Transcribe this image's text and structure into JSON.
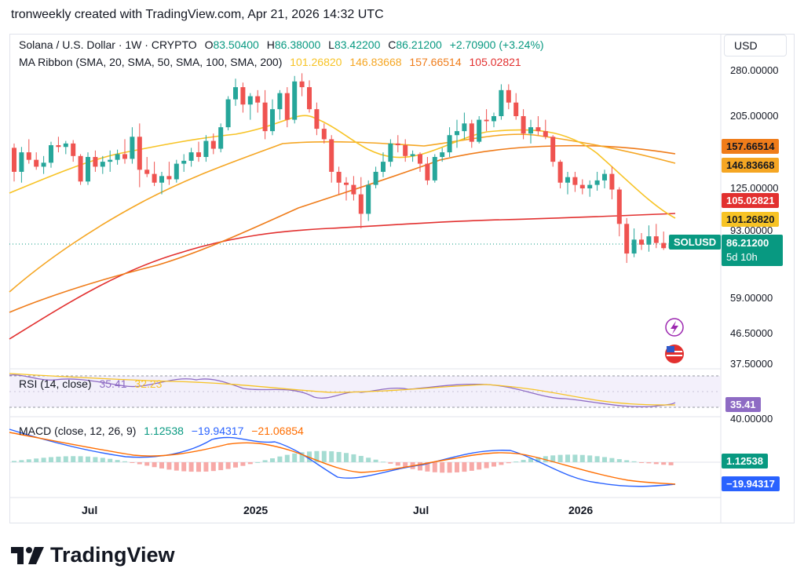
{
  "header": {
    "text": "tronweekly created with TradingView.com, Apr 21, 2026 14:32 UTC"
  },
  "currency_button": "USD",
  "legend": {
    "symbol": "Solana / U.S. Dollar · 1W · CRYPTO",
    "open_label": "O",
    "open": "83.50400",
    "high_label": "H",
    "high": "86.38000",
    "low_label": "L",
    "low": "83.42200",
    "close_label": "C",
    "close": "86.21200",
    "change": "+2.70900 (+3.24%)",
    "ma_title": "MA Ribbon (SMA, 20, SMA, 50, SMA, 100, SMA, 200)",
    "ma_values": [
      "101.26820",
      "146.83668",
      "157.66514",
      "105.02821"
    ]
  },
  "rsi_legend": {
    "title": "RSI (14, close)",
    "rsi": "35.41",
    "ma": "32.23"
  },
  "macd_legend": {
    "title": "MACD (close, 12, 26, 9)",
    "hist": "1.12538",
    "macd": "−19.94317",
    "signal": "−21.06854"
  },
  "price_axis": [
    "280.00000",
    "205.00000",
    "125.00000",
    "93.00000",
    "59.00000",
    "46.50000",
    "37.50000"
  ],
  "price_tags": {
    "ma100": "157.66514",
    "ma50": "146.83668",
    "ma200": "105.02821",
    "ma20": "101.26820",
    "symbol": "SOLUSD",
    "last": "86.21200",
    "countdown": "5d 10h"
  },
  "rsi_axis": {
    "tag": "35.41",
    "level": "40.00000"
  },
  "macd_axis": {
    "hist_tag": "1.12538",
    "macd_tag": "−19.94317"
  },
  "x_labels": [
    "Jul",
    "2025",
    "Jul",
    "2026"
  ],
  "brand": "TradingView",
  "colors": {
    "up": "#26a69a",
    "down": "#ef5350",
    "ma20": "#f7c325",
    "ma50": "#f5a623",
    "ma100": "#ef7c1a",
    "ma200": "#e2302f",
    "rsi": "#8e6bc4",
    "rsi_ma": "#f7c325",
    "macd": "#2962ff",
    "signal": "#ff6d00",
    "last": "#089981"
  },
  "chart_data": {
    "type": "candlestick",
    "interval": "1W",
    "y_scale": "log",
    "ylim": [
      37.5,
      300
    ],
    "candles": [
      [
        165,
        170,
        131,
        140
      ],
      [
        140,
        166,
        130,
        160
      ],
      [
        160,
        175,
        148,
        152
      ],
      [
        152,
        160,
        142,
        145
      ],
      [
        145,
        156,
        138,
        149
      ],
      [
        149,
        172,
        144,
        168
      ],
      [
        168,
        178,
        160,
        166
      ],
      [
        166,
        173,
        158,
        170
      ],
      [
        170,
        174,
        150,
        156
      ],
      [
        156,
        158,
        128,
        131
      ],
      [
        131,
        160,
        128,
        155
      ],
      [
        155,
        162,
        140,
        145
      ],
      [
        145,
        156,
        138,
        150
      ],
      [
        150,
        162,
        140,
        152
      ],
      [
        152,
        163,
        147,
        158
      ],
      [
        158,
        175,
        148,
        153
      ],
      [
        153,
        190,
        148,
        178
      ],
      [
        178,
        195,
        126,
        142
      ],
      [
        142,
        155,
        135,
        138
      ],
      [
        138,
        150,
        127,
        130
      ],
      [
        130,
        140,
        120,
        136
      ],
      [
        136,
        150,
        128,
        133
      ],
      [
        133,
        152,
        130,
        148
      ],
      [
        148,
        158,
        140,
        151
      ],
      [
        151,
        165,
        145,
        160
      ],
      [
        160,
        172,
        150,
        155
      ],
      [
        155,
        180,
        150,
        173
      ],
      [
        173,
        182,
        158,
        164
      ],
      [
        164,
        195,
        160,
        190
      ],
      [
        190,
        235,
        186,
        230
      ],
      [
        230,
        265,
        220,
        250
      ],
      [
        250,
        258,
        210,
        222
      ],
      [
        222,
        240,
        200,
        235
      ],
      [
        235,
        245,
        210,
        225
      ],
      [
        225,
        245,
        175,
        185
      ],
      [
        185,
        230,
        180,
        215
      ],
      [
        215,
        245,
        200,
        240
      ],
      [
        240,
        250,
        190,
        200
      ],
      [
        200,
        270,
        195,
        260
      ],
      [
        260,
        275,
        235,
        250
      ],
      [
        250,
        262,
        210,
        215
      ],
      [
        215,
        225,
        180,
        188
      ],
      [
        188,
        195,
        170,
        175
      ],
      [
        175,
        180,
        130,
        140
      ],
      [
        140,
        145,
        120,
        130
      ],
      [
        130,
        135,
        115,
        128
      ],
      [
        128,
        136,
        115,
        120
      ],
      [
        120,
        135,
        95,
        105
      ],
      [
        105,
        132,
        100,
        128
      ],
      [
        128,
        145,
        125,
        140
      ],
      [
        140,
        160,
        135,
        150
      ],
      [
        150,
        175,
        145,
        170
      ],
      [
        170,
        180,
        160,
        168
      ],
      [
        168,
        175,
        150,
        156
      ],
      [
        156,
        162,
        150,
        158
      ],
      [
        158,
        160,
        140,
        148
      ],
      [
        148,
        155,
        128,
        132
      ],
      [
        132,
        158,
        130,
        155
      ],
      [
        155,
        165,
        150,
        160
      ],
      [
        160,
        190,
        155,
        180
      ],
      [
        180,
        200,
        165,
        185
      ],
      [
        185,
        210,
        175,
        195
      ],
      [
        195,
        200,
        165,
        172
      ],
      [
        172,
        205,
        170,
        200
      ],
      [
        200,
        215,
        185,
        198
      ],
      [
        198,
        210,
        190,
        205
      ],
      [
        205,
        255,
        200,
        245
      ],
      [
        245,
        255,
        215,
        225
      ],
      [
        225,
        240,
        200,
        205
      ],
      [
        205,
        215,
        175,
        182
      ],
      [
        182,
        200,
        170,
        190
      ],
      [
        190,
        205,
        180,
        185
      ],
      [
        185,
        200,
        175,
        178
      ],
      [
        178,
        180,
        145,
        150
      ],
      [
        150,
        152,
        125,
        130
      ],
      [
        130,
        140,
        120,
        135
      ],
      [
        135,
        140,
        122,
        128
      ],
      [
        128,
        133,
        120,
        125
      ],
      [
        125,
        132,
        118,
        128
      ],
      [
        128,
        140,
        123,
        132
      ],
      [
        132,
        142,
        125,
        138
      ],
      [
        138,
        145,
        116,
        124
      ],
      [
        124,
        126,
        90,
        98
      ],
      [
        98,
        102,
        75,
        80
      ],
      [
        80,
        95,
        78,
        88
      ],
      [
        88,
        92,
        82,
        85
      ],
      [
        85,
        97,
        81,
        90
      ],
      [
        90,
        98,
        83,
        86
      ],
      [
        86,
        93,
        82,
        83
      ],
      [
        83,
        86,
        83,
        86
      ]
    ]
  }
}
